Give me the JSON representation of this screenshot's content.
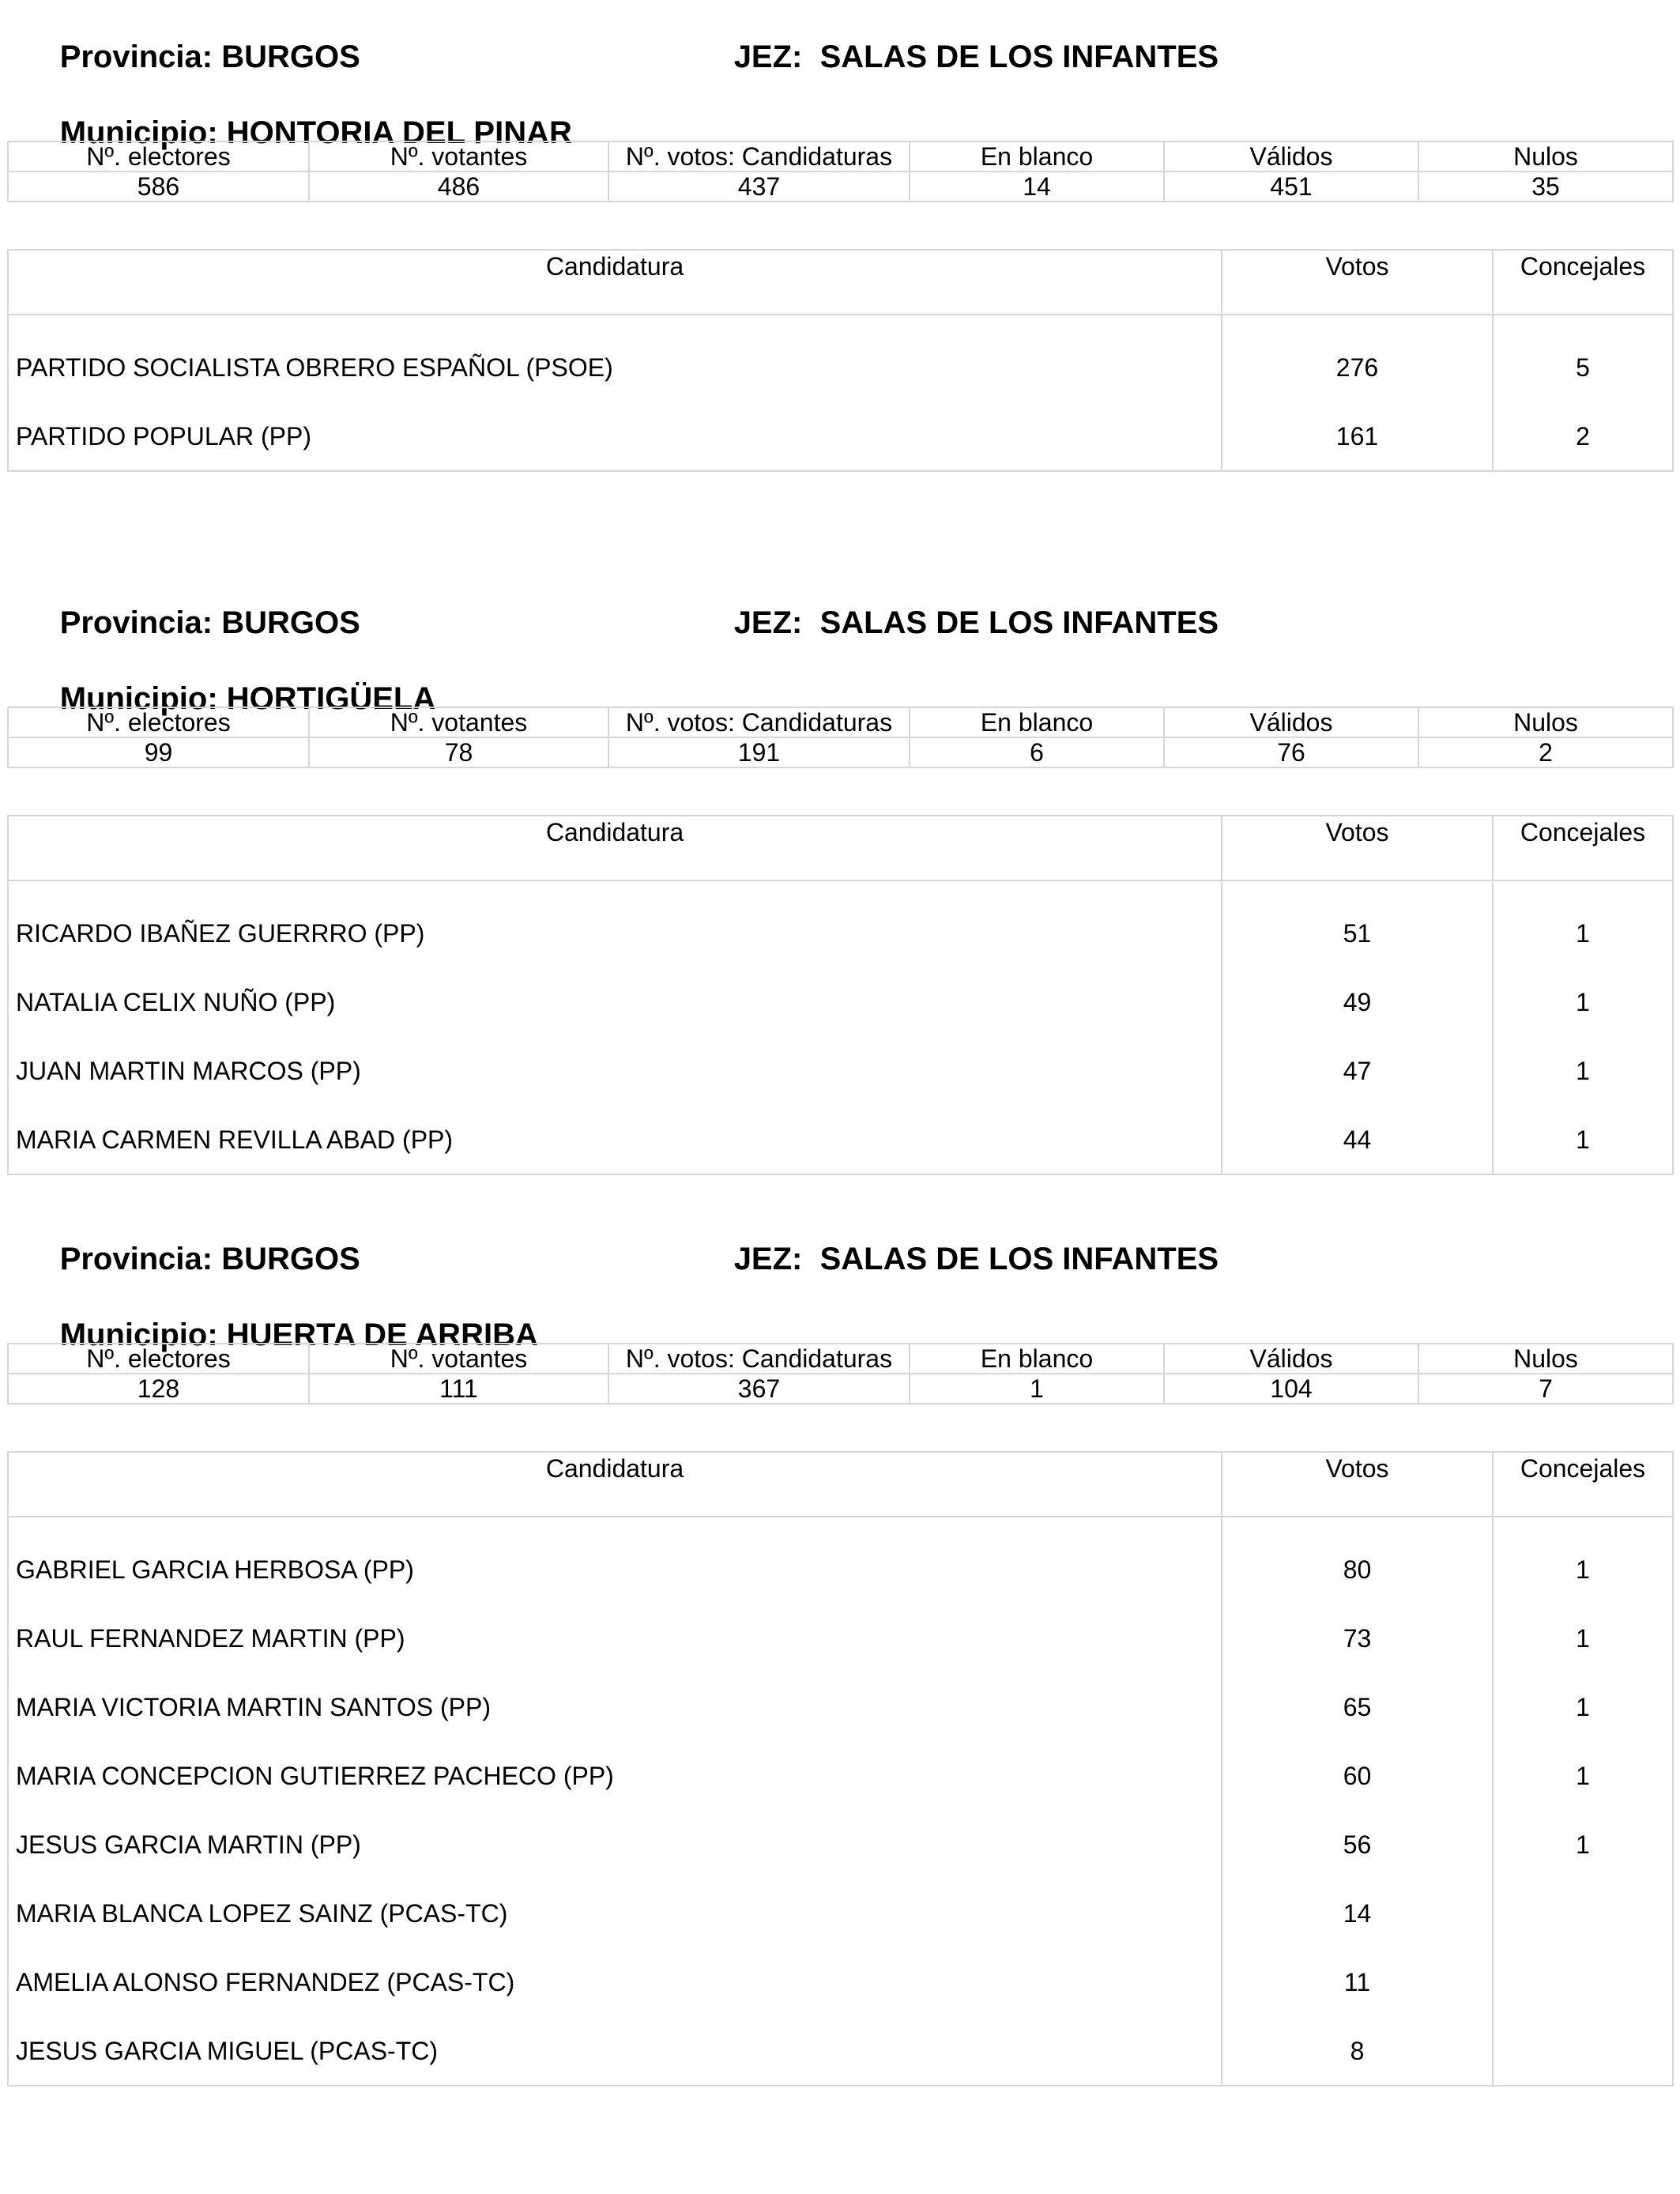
{
  "labels": {
    "provincia": "Provincia:",
    "jez": "JEZ:",
    "municipio": "Municipio:",
    "stats_headers": [
      "Nº. electores",
      "Nº. votantes",
      "Nº. votos: Candidaturas",
      "En blanco",
      "Válidos",
      "Nulos"
    ],
    "cand_headers": [
      "Candidatura",
      "Votos",
      "Concejales"
    ]
  },
  "sections": [
    {
      "provincia": "BURGOS",
      "jez": "SALAS DE LOS INFANTES",
      "municipio": "HONTORIA DEL PINAR",
      "stats": [
        "586",
        "486",
        "437",
        "14",
        "451",
        "35"
      ],
      "candidates": [
        {
          "name": "PARTIDO SOCIALISTA OBRERO ESPAÑOL (PSOE)",
          "votos": "276",
          "concejales": "5"
        },
        {
          "name": "PARTIDO POPULAR (PP)",
          "votos": "161",
          "concejales": "2"
        }
      ]
    },
    {
      "provincia": "BURGOS",
      "jez": "SALAS DE LOS INFANTES",
      "municipio": "HORTIGÜELA",
      "stats": [
        "99",
        "78",
        "191",
        "6",
        "76",
        "2"
      ],
      "candidates": [
        {
          "name": "RICARDO IBAÑEZ GUERRRO (PP)",
          "votos": "51",
          "concejales": "1"
        },
        {
          "name": "NATALIA CELIX NUÑO (PP)",
          "votos": "49",
          "concejales": "1"
        },
        {
          "name": "JUAN MARTIN MARCOS (PP)",
          "votos": "47",
          "concejales": "1"
        },
        {
          "name": "MARIA CARMEN REVILLA ABAD (PP)",
          "votos": "44",
          "concejales": "1"
        }
      ]
    },
    {
      "provincia": "BURGOS",
      "jez": "SALAS DE LOS INFANTES",
      "municipio": "HUERTA DE ARRIBA",
      "stats": [
        "128",
        "111",
        "367",
        "1",
        "104",
        "7"
      ],
      "candidates": [
        {
          "name": "GABRIEL GARCIA HERBOSA (PP)",
          "votos": "80",
          "concejales": "1"
        },
        {
          "name": "RAUL FERNANDEZ MARTIN (PP)",
          "votos": "73",
          "concejales": "1"
        },
        {
          "name": "MARIA VICTORIA MARTIN SANTOS (PP)",
          "votos": "65",
          "concejales": "1"
        },
        {
          "name": "MARIA CONCEPCION GUTIERREZ PACHECO (PP)",
          "votos": "60",
          "concejales": "1"
        },
        {
          "name": "JESUS GARCIA MARTIN (PP)",
          "votos": "56",
          "concejales": "1"
        },
        {
          "name": "MARIA BLANCA LOPEZ SAINZ (PCAS-TC)",
          "votos": "14",
          "concejales": ""
        },
        {
          "name": "AMELIA ALONSO FERNANDEZ (PCAS-TC)",
          "votos": "11",
          "concejales": ""
        },
        {
          "name": "JESUS GARCIA MIGUEL (PCAS-TC)",
          "votos": "8",
          "concejales": ""
        }
      ]
    }
  ]
}
